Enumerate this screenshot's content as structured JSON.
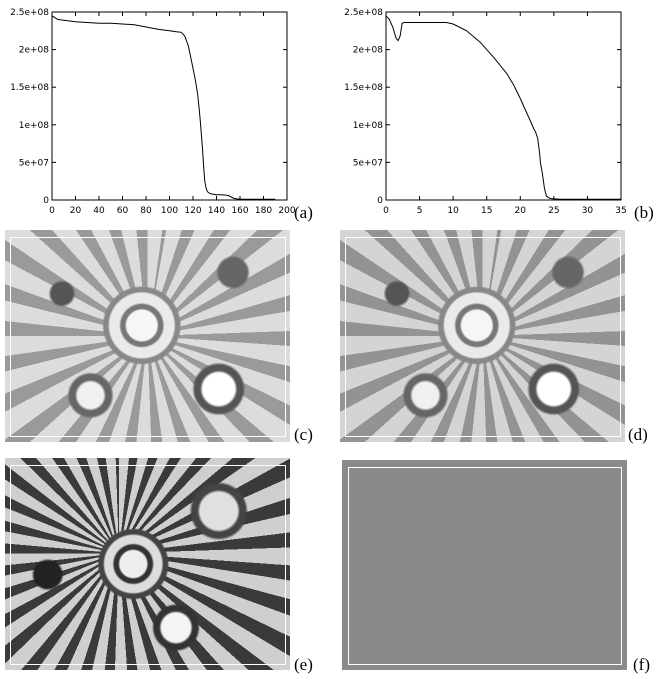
{
  "panel_labels": {
    "a": "(a)",
    "b": "(b)",
    "c": "(c)",
    "d": "(d)",
    "e": "(e)",
    "f": "(f)"
  },
  "chart_data": [
    {
      "type": "line",
      "panel": "(a)",
      "title": "",
      "xlabel": "",
      "ylabel": "",
      "xlim": [
        0,
        200
      ],
      "ylim": [
        0,
        250000000
      ],
      "xticks": [
        "0",
        "20",
        "40",
        "60",
        "80",
        "100",
        "120",
        "140",
        "160",
        "180",
        "200"
      ],
      "yticks": [
        "0",
        "5e+07",
        "1e+08",
        "1.5e+08",
        "2e+08",
        "2.5e+08"
      ],
      "series": [
        {
          "x": [
            0,
            2,
            5,
            10,
            15,
            20,
            30,
            40,
            50,
            60,
            70,
            80,
            90,
            100,
            105,
            110,
            113,
            116,
            118,
            120,
            122,
            124,
            125,
            126,
            127,
            128,
            129,
            130,
            131,
            132,
            133,
            134,
            136,
            140,
            145,
            150,
            155,
            160,
            170,
            180,
            190
          ],
          "y": [
            245000000,
            243000000,
            240000000,
            239000000,
            238000000,
            237000000,
            236000000,
            235000000,
            235000000,
            234000000,
            233000000,
            230000000,
            227000000,
            225000000,
            224000000,
            223000000,
            218000000,
            205000000,
            190000000,
            175000000,
            160000000,
            140000000,
            125000000,
            108000000,
            90000000,
            70000000,
            45000000,
            25000000,
            17000000,
            12000000,
            10000000,
            9000000,
            8000000,
            7000000,
            7000000,
            6000000,
            2000000,
            1000000,
            1000000,
            1000000,
            1000000
          ]
        }
      ]
    },
    {
      "type": "line",
      "panel": "(b)",
      "title": "",
      "xlabel": "",
      "ylabel": "",
      "xlim": [
        0,
        35
      ],
      "ylim": [
        0,
        250000000
      ],
      "xticks": [
        "0",
        "5",
        "10",
        "15",
        "20",
        "25",
        "30",
        "35"
      ],
      "yticks": [
        "0",
        "5e+07",
        "1e+08",
        "1.5e+08",
        "2e+08",
        "2.5e+08"
      ],
      "series": [
        {
          "x": [
            0,
            0.5,
            1,
            1.5,
            1.8,
            2.1,
            2.4,
            2.7,
            3,
            4,
            5,
            6,
            7,
            8,
            9,
            10,
            12,
            14,
            16,
            18,
            19,
            20,
            20.5,
            21,
            21.5,
            22,
            22.3,
            22.6,
            22.9,
            23,
            23.3,
            23.6,
            23.9,
            24.2,
            24.5,
            25,
            26,
            28,
            30,
            32,
            35
          ],
          "y": [
            245000000,
            240000000,
            230000000,
            215000000,
            212000000,
            218000000,
            235000000,
            236000000,
            236000000,
            236000000,
            236000000,
            236000000,
            236000000,
            236000000,
            236000000,
            234000000,
            225000000,
            210000000,
            190000000,
            168000000,
            153000000,
            135000000,
            125000000,
            115000000,
            105000000,
            95000000,
            90000000,
            82000000,
            60000000,
            50000000,
            35000000,
            15000000,
            5000000,
            3000000,
            2000000,
            1500000,
            1000000,
            1000000,
            1000000,
            1000000,
            1000000
          ]
        }
      ]
    }
  ],
  "images": {
    "c": {
      "description_icon": "lace-fabric-image"
    },
    "d": {
      "description_icon": "lace-fabric-image"
    },
    "e": {
      "description_icon": "lace-fabric-image"
    },
    "f": {
      "description_icon": "gray-residual-image"
    }
  }
}
